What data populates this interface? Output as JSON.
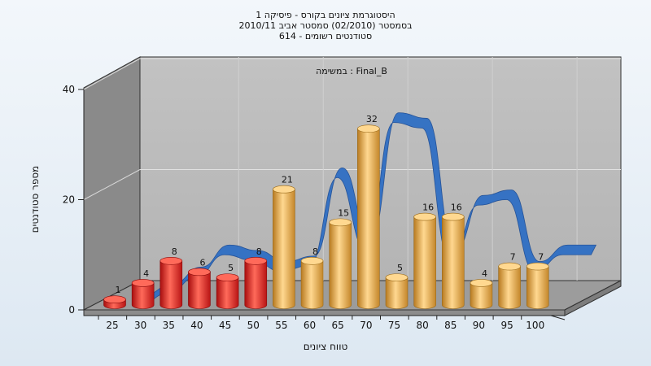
{
  "chart_data": {
    "type": "bar",
    "title_lines": [
      "היסטוגרמת ציונים בקורס - פיסיקה 1",
      "בסמסטר  (02/2010)  סמסטר אביב 2010/11",
      "סטודנטים רשומים - 614"
    ],
    "annotation": "במשימה : Final_B",
    "xlabel": "טווח ציונים",
    "ylabel": "מספר סטודנטים",
    "ylim": [
      0,
      40
    ],
    "yticks": [
      0,
      20,
      40
    ],
    "categories": [
      "25",
      "30",
      "35",
      "40",
      "45",
      "50",
      "55",
      "60",
      "65",
      "70",
      "75",
      "80",
      "85",
      "90",
      "95",
      "100"
    ],
    "values": [
      1,
      4,
      8,
      6,
      5,
      8,
      21,
      8,
      15,
      32,
      5,
      16,
      16,
      4,
      7,
      7
    ],
    "bar_colors": [
      "red",
      "red",
      "red",
      "red",
      "red",
      "red",
      "orange",
      "orange",
      "orange",
      "orange",
      "orange",
      "orange",
      "orange",
      "orange",
      "orange",
      "orange"
    ],
    "curve": {
      "type": "area",
      "color": "#2f6fc4",
      "values": [
        1,
        3,
        6,
        10,
        9,
        7,
        8,
        24,
        11,
        34,
        33,
        9,
        19,
        20,
        7,
        10,
        10
      ]
    },
    "grid": true,
    "legend": "none"
  },
  "colors": {
    "red": "#d41c1c",
    "red_light": "#ff6a5a",
    "orange": "#e0a040",
    "orange_light": "#ffd890",
    "floor": "#9c9c9c",
    "back_wall": "#bdbdbd",
    "left_wall": "#8a8a8a"
  }
}
